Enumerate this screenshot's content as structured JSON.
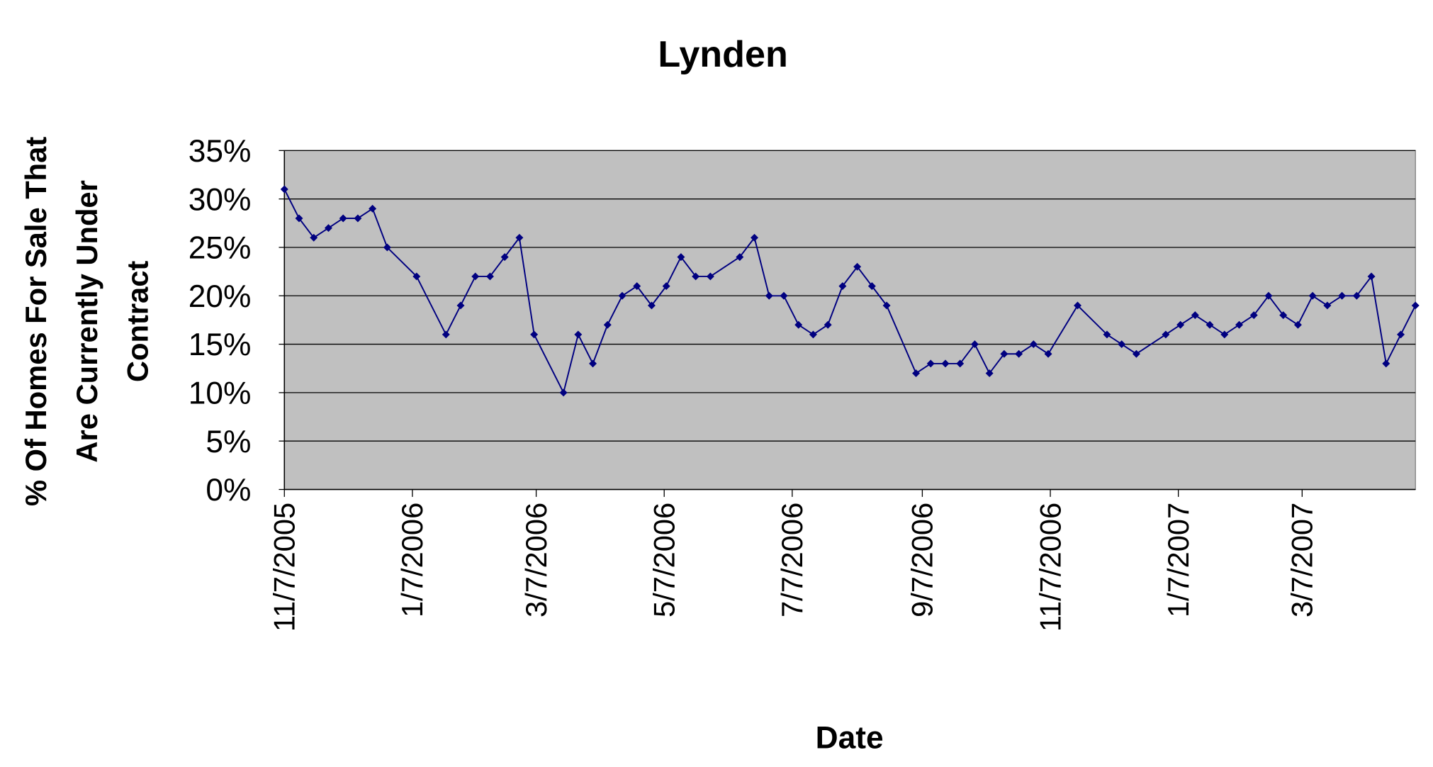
{
  "chart_data": {
    "type": "line",
    "title": "Lynden",
    "xlabel": "Date",
    "ylabel": [
      "% Of Homes For Sale That",
      "Are Currently Under",
      "Contract"
    ],
    "x": [
      "11/7/2005",
      "11/14/2005",
      "11/21/2005",
      "11/28/2005",
      "12/5/2005",
      "12/12/2005",
      "12/19/2005",
      "12/26/2005",
      "1/9/2006",
      "1/23/2006",
      "1/30/2006",
      "2/6/2006",
      "2/13/2006",
      "2/20/2006",
      "2/27/2006",
      "3/6/2006",
      "3/20/2006",
      "3/27/2006",
      "4/3/2006",
      "4/10/2006",
      "4/17/2006",
      "4/24/2006",
      "5/1/2006",
      "5/8/2006",
      "5/15/2006",
      "5/22/2006",
      "5/29/2006",
      "6/12/2006",
      "6/19/2006",
      "6/26/2006",
      "7/3/2006",
      "7/10/2006",
      "7/17/2006",
      "7/24/2006",
      "7/31/2006",
      "8/7/2006",
      "8/14/2006",
      "8/21/2006",
      "9/4/2006",
      "9/11/2006",
      "9/18/2006",
      "9/25/2006",
      "10/2/2006",
      "10/9/2006",
      "10/16/2006",
      "10/23/2006",
      "10/30/2006",
      "11/6/2006",
      "11/20/2006",
      "12/4/2006",
      "12/11/2006",
      "12/18/2006",
      "1/1/2007",
      "1/8/2007",
      "1/15/2007",
      "1/22/2007",
      "1/29/2007",
      "2/5/2007",
      "2/12/2007",
      "2/19/2007",
      "2/26/2007",
      "3/5/2007",
      "3/12/2007",
      "3/19/2007",
      "3/26/2007",
      "4/2/2007",
      "4/9/2007",
      "4/16/2007",
      "4/23/2007",
      "4/30/2007"
    ],
    "series": [
      {
        "name": "Lynden",
        "color": "#000080",
        "values": [
          31,
          28,
          26,
          27,
          28,
          28,
          29,
          25,
          22,
          16,
          19,
          22,
          22,
          24,
          26,
          16,
          10,
          16,
          13,
          17,
          20,
          21,
          19,
          21,
          24,
          22,
          22,
          24,
          26,
          20,
          20,
          17,
          16,
          17,
          21,
          23,
          21,
          19,
          12,
          13,
          13,
          13,
          15,
          12,
          14,
          14,
          15,
          14,
          19,
          16,
          15,
          14,
          16,
          17,
          18,
          17,
          16,
          17,
          18,
          20,
          18,
          17,
          20,
          19,
          20,
          20,
          22,
          13,
          16,
          19
        ]
      }
    ],
    "xlim": [
      "11/7/2005",
      "4/30/2007"
    ],
    "xticks": [
      "11/7/2005",
      "1/7/2006",
      "3/7/2006",
      "5/7/2006",
      "7/7/2006",
      "9/7/2006",
      "11/7/2006",
      "1/7/2007",
      "3/7/2007"
    ],
    "ylim": [
      0,
      35
    ],
    "yticks": [
      {
        "value": 0,
        "label": "0%"
      },
      {
        "value": 5,
        "label": "5%"
      },
      {
        "value": 10,
        "label": "10%"
      },
      {
        "value": 15,
        "label": "15%"
      },
      {
        "value": 20,
        "label": "20%"
      },
      {
        "value": 25,
        "label": "25%"
      },
      {
        "value": 30,
        "label": "30%"
      },
      {
        "value": 35,
        "label": "35%"
      }
    ],
    "grid": true,
    "plot_background": "#c0c0c0"
  }
}
